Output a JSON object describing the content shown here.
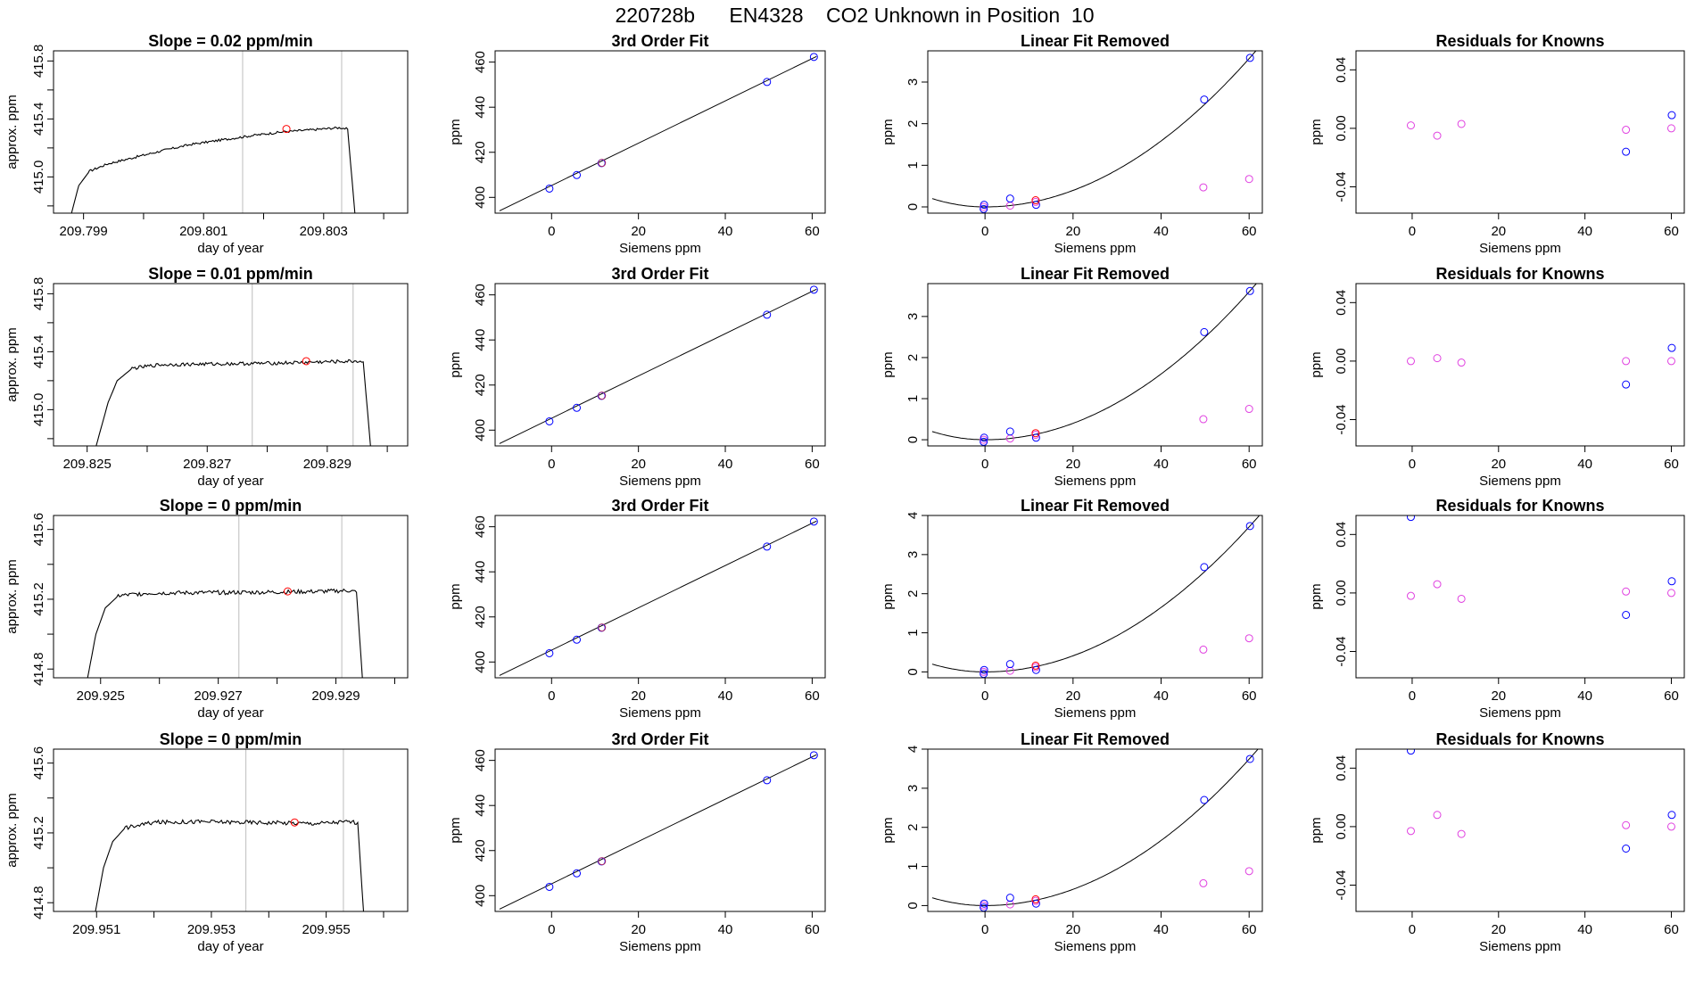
{
  "figure_title": "220728b      EN4328    CO2 Unknown in Position  10",
  "colors": {
    "line": "#000000",
    "axis": "#000000",
    "vline": "#c8c8c8",
    "unknown": "#ff0000",
    "known_blue": "#0000ff",
    "known_magenta": "#e040e0",
    "fit_unknown": "#b0306a"
  },
  "chart_data": [
    {
      "type": "line",
      "title": "Slope =  0.02  ppm/min",
      "xlabel": "day of year",
      "ylabel": "approx. ppm",
      "xlim": [
        209.7985,
        209.8044
      ],
      "ylim": [
        414.75,
        415.87
      ],
      "xticks": [
        209.799,
        209.8,
        209.801,
        209.802,
        209.803,
        209.804
      ],
      "xtick_labels": [
        "209.799",
        "",
        "209.801",
        "",
        "209.803",
        ""
      ],
      "yticks": [
        414.8,
        415.0,
        415.2,
        415.4,
        415.6,
        415.8
      ],
      "ytick_labels": [
        "",
        "415.0",
        "",
        "415.4",
        "",
        "415.8"
      ],
      "vlines": [
        209.80165,
        209.8033
      ],
      "unknown_point": [
        209.80238,
        415.331
      ],
      "trace": [
        [
          209.7988,
          414.75
        ],
        [
          209.79892,
          414.94
        ],
        [
          209.7991,
          415.04
        ],
        [
          209.7994,
          415.09
        ],
        [
          209.7998,
          415.13
        ],
        [
          209.8003,
          415.18
        ],
        [
          209.8008,
          415.225
        ],
        [
          209.8013,
          415.255
        ],
        [
          209.8018,
          415.285
        ],
        [
          209.8023,
          415.31
        ],
        [
          209.8028,
          415.325
        ],
        [
          209.8031,
          415.335
        ],
        [
          209.80328,
          415.34
        ],
        [
          209.8034,
          415.33
        ],
        [
          209.80352,
          414.75
        ]
      ],
      "trace_noise": 0.008
    },
    {
      "type": "scatter",
      "title": "3rd Order Fit",
      "xlabel": "Siemens ppm",
      "ylabel": "ppm",
      "xlim": [
        -13,
        63
      ],
      "ylim": [
        393,
        465
      ],
      "xticks": [
        0,
        20,
        40,
        60
      ],
      "yticks": [
        400,
        420,
        440,
        460
      ],
      "fit": {
        "type": "linear",
        "x0": -12,
        "y0": 394,
        "x1": 61,
        "y1": 462.5
      },
      "points_blue": [
        [
          -0.5,
          403.9
        ],
        [
          5.8,
          409.9
        ],
        [
          11.5,
          415.2
        ],
        [
          49.6,
          451.2
        ],
        [
          60.4,
          462.3
        ]
      ],
      "points_unknown": [
        [
          11.6,
          415.3
        ]
      ]
    },
    {
      "type": "scatter",
      "title": "Linear Fit Removed",
      "xlabel": "Siemens ppm",
      "ylabel": "ppm",
      "xlim": [
        -13,
        63
      ],
      "ylim": [
        -0.15,
        3.75
      ],
      "xticks": [
        0,
        20,
        40,
        60
      ],
      "yticks": [
        0,
        1,
        2,
        3
      ],
      "curve": {
        "x0": -12,
        "vertex": [
          0,
          0
        ],
        "a": 0.00099,
        "y_left": 0.2
      },
      "points_blue": [
        [
          -0.3,
          -0.05
        ],
        [
          -0.2,
          0.05
        ],
        [
          5.7,
          0.2
        ],
        [
          11.6,
          0.05
        ],
        [
          49.8,
          2.58
        ],
        [
          60.2,
          3.58
        ]
      ],
      "points_magenta": [
        [
          -0.3,
          0.0
        ],
        [
          5.7,
          0.03
        ],
        [
          11.5,
          0.12
        ],
        [
          49.6,
          0.47
        ],
        [
          60.0,
          0.67
        ]
      ],
      "points_unknown": [
        [
          11.5,
          0.16
        ]
      ]
    },
    {
      "type": "scatter",
      "title": "Residuals for Knowns",
      "xlabel": "Siemens ppm",
      "ylabel": "ppm",
      "xlim": [
        -13,
        63
      ],
      "ylim": [
        -0.058,
        0.053
      ],
      "xticks": [
        0,
        20,
        40,
        60
      ],
      "yticks": [
        -0.04,
        0.0,
        0.04
      ],
      "ytick_labels": [
        "-0.04",
        "0.00",
        "0.04"
      ],
      "points_blue": [
        [
          49.5,
          -0.016
        ],
        [
          60.1,
          0.009
        ]
      ],
      "points_magenta": [
        [
          -0.3,
          0.002
        ],
        [
          5.8,
          -0.005
        ],
        [
          11.4,
          0.003
        ],
        [
          49.5,
          -0.001
        ],
        [
          60.0,
          0.0
        ]
      ]
    },
    {
      "type": "line",
      "title": "Slope =  0.01  ppm/min",
      "xlabel": "day of year",
      "ylabel": "approx. ppm",
      "xlim": [
        209.82444,
        209.83034
      ],
      "ylim": [
        414.75,
        415.87
      ],
      "xticks": [
        209.825,
        209.826,
        209.827,
        209.828,
        209.829,
        209.83
      ],
      "xtick_labels": [
        "209.825",
        "",
        "209.827",
        "",
        "209.829",
        ""
      ],
      "yticks": [
        414.8,
        415.0,
        415.2,
        415.4,
        415.6,
        415.8
      ],
      "ytick_labels": [
        "",
        "415.0",
        "",
        "415.4",
        "",
        "415.8"
      ],
      "vlines": [
        209.82775,
        209.82943
      ],
      "unknown_point": [
        209.82865,
        415.335
      ],
      "trace": [
        [
          209.82515,
          414.75
        ],
        [
          209.82535,
          415.05
        ],
        [
          209.8255,
          415.2
        ],
        [
          209.82575,
          415.285
        ],
        [
          209.8262,
          415.31
        ],
        [
          209.827,
          415.315
        ],
        [
          209.828,
          415.32
        ],
        [
          209.829,
          415.33
        ],
        [
          209.8295,
          415.335
        ],
        [
          209.8296,
          415.33
        ],
        [
          209.82972,
          414.75
        ]
      ],
      "trace_noise": 0.012
    },
    {
      "type": "scatter",
      "title": "3rd Order Fit",
      "xlabel": "Siemens ppm",
      "ylabel": "ppm",
      "xlim": [
        -13,
        63
      ],
      "ylim": [
        393,
        465
      ],
      "xticks": [
        0,
        20,
        40,
        60
      ],
      "yticks": [
        400,
        420,
        440,
        460
      ],
      "fit": {
        "type": "linear",
        "x0": -12,
        "y0": 394,
        "x1": 61,
        "y1": 462.5
      },
      "points_blue": [
        [
          -0.5,
          403.9
        ],
        [
          5.8,
          409.9
        ],
        [
          11.5,
          415.2
        ],
        [
          49.6,
          451.2
        ],
        [
          60.4,
          462.3
        ]
      ],
      "points_unknown": [
        [
          11.6,
          415.3
        ]
      ]
    },
    {
      "type": "scatter",
      "title": "Linear Fit Removed",
      "xlabel": "Siemens ppm",
      "ylabel": "ppm",
      "xlim": [
        -13,
        63
      ],
      "ylim": [
        -0.15,
        3.8
      ],
      "xticks": [
        0,
        20,
        40,
        60
      ],
      "yticks": [
        0,
        1,
        2,
        3
      ],
      "curve": {
        "x0": -12,
        "vertex": [
          0,
          0
        ],
        "a": 0.001,
        "y_left": 0.2
      },
      "points_blue": [
        [
          -0.3,
          -0.05
        ],
        [
          -0.2,
          0.05
        ],
        [
          5.7,
          0.2
        ],
        [
          11.6,
          0.05
        ],
        [
          49.8,
          2.62
        ],
        [
          60.2,
          3.62
        ]
      ],
      "points_magenta": [
        [
          -0.3,
          0.0
        ],
        [
          5.7,
          0.03
        ],
        [
          11.5,
          0.12
        ],
        [
          49.6,
          0.5
        ],
        [
          60.0,
          0.75
        ]
      ],
      "points_unknown": [
        [
          11.5,
          0.16
        ]
      ]
    },
    {
      "type": "scatter",
      "title": "Residuals for Knowns",
      "xlabel": "Siemens ppm",
      "ylabel": "ppm",
      "xlim": [
        -13,
        63
      ],
      "ylim": [
        -0.058,
        0.053
      ],
      "xticks": [
        0,
        20,
        40,
        60
      ],
      "yticks": [
        -0.04,
        0.0,
        0.04
      ],
      "ytick_labels": [
        "-0.04",
        "0.00",
        "0.04"
      ],
      "points_blue": [
        [
          49.5,
          -0.016
        ],
        [
          60.1,
          0.009
        ]
      ],
      "points_magenta": [
        [
          -0.3,
          0.0
        ],
        [
          5.8,
          0.002
        ],
        [
          11.4,
          -0.001
        ],
        [
          49.5,
          0.0
        ],
        [
          60.0,
          0.0
        ]
      ]
    },
    {
      "type": "line",
      "title": "Slope =  0  ppm/min",
      "xlabel": "day of year",
      "ylabel": "approx. ppm",
      "xlim": [
        209.9242,
        209.93022
      ],
      "ylim": [
        414.75,
        415.68
      ],
      "xticks": [
        209.925,
        209.926,
        209.927,
        209.928,
        209.929,
        209.93
      ],
      "xtick_labels": [
        "209.925",
        "",
        "209.927",
        "",
        "209.929",
        ""
      ],
      "yticks": [
        414.8,
        415.0,
        415.2,
        415.4,
        415.6
      ],
      "ytick_labels": [
        "414.8",
        "",
        "415.2",
        "",
        "415.6"
      ],
      "vlines": [
        209.92735,
        209.9291
      ],
      "unknown_point": [
        209.92818,
        415.245
      ],
      "trace": [
        [
          209.92478,
          414.75
        ],
        [
          209.92492,
          415.0
        ],
        [
          209.92508,
          415.15
        ],
        [
          209.9253,
          415.22
        ],
        [
          209.9258,
          415.235
        ],
        [
          209.9268,
          415.238
        ],
        [
          209.9278,
          415.24
        ],
        [
          209.9288,
          415.245
        ],
        [
          209.92925,
          415.25
        ],
        [
          209.92935,
          415.24
        ],
        [
          209.92945,
          414.75
        ]
      ],
      "trace_noise": 0.012
    },
    {
      "type": "scatter",
      "title": "3rd Order Fit",
      "xlabel": "Siemens ppm",
      "ylabel": "ppm",
      "xlim": [
        -13,
        63
      ],
      "ylim": [
        393,
        465
      ],
      "xticks": [
        0,
        20,
        40,
        60
      ],
      "yticks": [
        400,
        420,
        440,
        460
      ],
      "fit": {
        "type": "linear",
        "x0": -12,
        "y0": 394,
        "x1": 61,
        "y1": 462.5
      },
      "points_blue": [
        [
          -0.5,
          403.9
        ],
        [
          5.8,
          409.9
        ],
        [
          11.5,
          415.2
        ],
        [
          49.6,
          451.2
        ],
        [
          60.4,
          462.3
        ]
      ],
      "points_unknown": [
        [
          11.6,
          415.3
        ]
      ]
    },
    {
      "type": "scatter",
      "title": "Linear Fit Removed",
      "xlabel": "Siemens ppm",
      "ylabel": "ppm",
      "xlim": [
        -13,
        63
      ],
      "ylim": [
        -0.15,
        4.0
      ],
      "xticks": [
        0,
        20,
        40,
        60
      ],
      "yticks": [
        0,
        1,
        2,
        3,
        4
      ],
      "curve": {
        "x0": -12,
        "vertex": [
          0,
          0
        ],
        "a": 0.00103,
        "y_left": 0.2
      },
      "points_blue": [
        [
          -0.3,
          -0.05
        ],
        [
          -0.2,
          0.05
        ],
        [
          5.7,
          0.2
        ],
        [
          11.6,
          0.05
        ],
        [
          49.8,
          2.68
        ],
        [
          60.2,
          3.73
        ]
      ],
      "points_magenta": [
        [
          -0.3,
          0.0
        ],
        [
          5.7,
          0.03
        ],
        [
          11.5,
          0.12
        ],
        [
          49.6,
          0.57
        ],
        [
          60.0,
          0.86
        ]
      ],
      "points_unknown": [
        [
          11.5,
          0.16
        ]
      ]
    },
    {
      "type": "scatter",
      "title": "Residuals for Knowns",
      "xlabel": "Siemens ppm",
      "ylabel": "ppm",
      "xlim": [
        -13,
        63
      ],
      "ylim": [
        -0.058,
        0.053
      ],
      "xticks": [
        0,
        20,
        40,
        60
      ],
      "yticks": [
        -0.04,
        0.0,
        0.04
      ],
      "ytick_labels": [
        "-0.04",
        "0.00",
        "0.04"
      ],
      "points_blue": [
        [
          -0.3,
          0.052
        ],
        [
          49.5,
          -0.015
        ],
        [
          60.1,
          0.008
        ]
      ],
      "points_magenta": [
        [
          -0.3,
          -0.002
        ],
        [
          5.8,
          0.006
        ],
        [
          11.4,
          -0.004
        ],
        [
          49.5,
          0.001
        ],
        [
          60.0,
          0.0
        ]
      ]
    },
    {
      "type": "line",
      "title": "Slope =  0  ppm/min",
      "xlabel": "day of year",
      "ylabel": "approx. ppm",
      "xlim": [
        209.95025,
        209.95642
      ],
      "ylim": [
        414.75,
        415.68
      ],
      "xticks": [
        209.951,
        209.952,
        209.953,
        209.954,
        209.955,
        209.956
      ],
      "xtick_labels": [
        "209.951",
        "",
        "209.953",
        "",
        "209.955",
        ""
      ],
      "yticks": [
        414.8,
        415.0,
        415.2,
        415.4,
        415.6
      ],
      "ytick_labels": [
        "414.8",
        "",
        "415.2",
        "",
        "415.6"
      ],
      "vlines": [
        209.9536,
        209.9553
      ],
      "unknown_point": [
        209.95445,
        415.26
      ],
      "trace": [
        [
          209.95098,
          414.75
        ],
        [
          209.95112,
          415.0
        ],
        [
          209.95128,
          415.15
        ],
        [
          209.9515,
          415.23
        ],
        [
          209.952,
          415.26
        ],
        [
          209.9528,
          415.265
        ],
        [
          209.9538,
          415.26
        ],
        [
          209.9548,
          415.255
        ],
        [
          209.9554,
          415.265
        ],
        [
          209.95555,
          415.26
        ],
        [
          209.95565,
          414.75
        ]
      ],
      "trace_noise": 0.012
    },
    {
      "type": "scatter",
      "title": "3rd Order Fit",
      "xlabel": "Siemens ppm",
      "ylabel": "ppm",
      "xlim": [
        -13,
        63
      ],
      "ylim": [
        393,
        465
      ],
      "xticks": [
        0,
        20,
        40,
        60
      ],
      "yticks": [
        400,
        420,
        440,
        460
      ],
      "fit": {
        "type": "linear",
        "x0": -12,
        "y0": 394,
        "x1": 61,
        "y1": 462.5
      },
      "points_blue": [
        [
          -0.5,
          403.9
        ],
        [
          5.8,
          409.9
        ],
        [
          11.5,
          415.2
        ],
        [
          49.6,
          451.2
        ],
        [
          60.4,
          462.3
        ]
      ],
      "points_unknown": [
        [
          11.6,
          415.3
        ]
      ]
    },
    {
      "type": "scatter",
      "title": "Linear Fit Removed",
      "xlabel": "Siemens ppm",
      "ylabel": "ppm",
      "xlim": [
        -13,
        63
      ],
      "ylim": [
        -0.15,
        4.0
      ],
      "xticks": [
        0,
        20,
        40,
        60
      ],
      "yticks": [
        0,
        1,
        2,
        3,
        4
      ],
      "curve": {
        "x0": -12,
        "vertex": [
          0,
          0
        ],
        "a": 0.00104,
        "y_left": 0.2
      },
      "points_blue": [
        [
          -0.3,
          -0.05
        ],
        [
          -0.2,
          0.05
        ],
        [
          5.7,
          0.2
        ],
        [
          11.6,
          0.05
        ],
        [
          49.8,
          2.7
        ],
        [
          60.2,
          3.75
        ]
      ],
      "points_magenta": [
        [
          -0.3,
          0.0
        ],
        [
          5.7,
          0.03
        ],
        [
          11.5,
          0.12
        ],
        [
          49.6,
          0.57
        ],
        [
          60.0,
          0.88
        ]
      ],
      "points_unknown": [
        [
          11.5,
          0.16
        ]
      ]
    },
    {
      "type": "scatter",
      "title": "Residuals for Knowns",
      "xlabel": "Siemens ppm",
      "ylabel": "ppm",
      "xlim": [
        -13,
        63
      ],
      "ylim": [
        -0.058,
        0.053
      ],
      "xticks": [
        0,
        20,
        40,
        60
      ],
      "yticks": [
        -0.04,
        0.0,
        0.04
      ],
      "ytick_labels": [
        "-0.04",
        "0.00",
        "0.04"
      ],
      "points_blue": [
        [
          -0.3,
          0.052
        ],
        [
          49.5,
          -0.015
        ],
        [
          60.1,
          0.008
        ]
      ],
      "points_magenta": [
        [
          -0.3,
          -0.003
        ],
        [
          5.8,
          0.008
        ],
        [
          11.4,
          -0.005
        ],
        [
          49.5,
          0.001
        ],
        [
          60.0,
          0.0
        ]
      ]
    }
  ]
}
